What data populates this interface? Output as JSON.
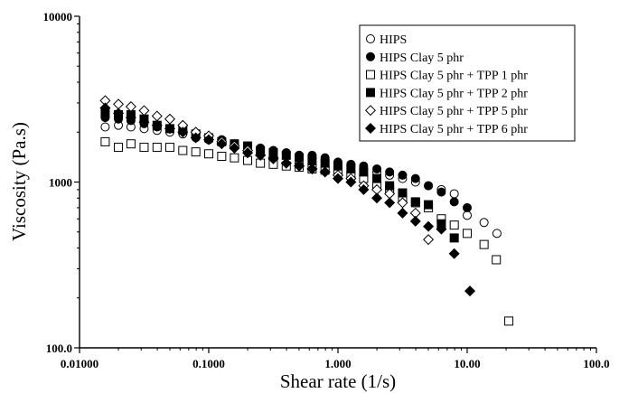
{
  "chart_data": {
    "type": "scatter",
    "xlabel": "Shear rate (1/s)",
    "ylabel": "Viscosity (Pa.s)",
    "xscale": "log",
    "yscale": "log",
    "xlim": [
      0.01,
      100
    ],
    "ylim": [
      100,
      10000
    ],
    "x_ticks": [
      {
        "value": 0.01,
        "label": "0.01000"
      },
      {
        "value": 0.1,
        "label": "0.1000"
      },
      {
        "value": 1,
        "label": "1.000"
      },
      {
        "value": 10,
        "label": "10.00"
      },
      {
        "value": 100,
        "label": "100.0"
      }
    ],
    "y_ticks": [
      {
        "value": 100,
        "label": "100.0"
      },
      {
        "value": 1000,
        "label": "1000"
      },
      {
        "value": 10000,
        "label": "10000"
      }
    ],
    "grid": false,
    "legend_position": "top-right",
    "series": [
      {
        "name": "HIPS",
        "marker": "open-circle",
        "points": [
          [
            0.0158,
            2150
          ],
          [
            0.02,
            2200
          ],
          [
            0.025,
            2150
          ],
          [
            0.0316,
            2100
          ],
          [
            0.0398,
            2050
          ],
          [
            0.05,
            2000
          ],
          [
            0.063,
            1950
          ],
          [
            0.0794,
            1850
          ],
          [
            0.1,
            1800
          ],
          [
            0.126,
            1750
          ],
          [
            0.158,
            1700
          ],
          [
            0.2,
            1650
          ],
          [
            0.251,
            1600
          ],
          [
            0.316,
            1550
          ],
          [
            0.398,
            1500
          ],
          [
            0.501,
            1450
          ],
          [
            0.631,
            1400
          ],
          [
            0.794,
            1350
          ],
          [
            1.0,
            1300
          ],
          [
            1.26,
            1250
          ],
          [
            1.58,
            1200
          ],
          [
            2.0,
            1150
          ],
          [
            2.51,
            1100
          ],
          [
            3.16,
            1050
          ],
          [
            3.98,
            1000
          ],
          [
            5.01,
            950
          ],
          [
            6.31,
            900
          ],
          [
            7.94,
            850
          ],
          [
            10.0,
            630
          ],
          [
            13.5,
            570
          ],
          [
            17.0,
            490
          ]
        ]
      },
      {
        "name": "HIPS Clay 5 phr",
        "marker": "filled-circle",
        "points": [
          [
            0.0158,
            2450
          ],
          [
            0.02,
            2400
          ],
          [
            0.025,
            2350
          ],
          [
            0.0316,
            2250
          ],
          [
            0.0398,
            2150
          ],
          [
            0.05,
            2100
          ],
          [
            0.063,
            2050
          ],
          [
            0.0794,
            1950
          ],
          [
            0.1,
            1850
          ],
          [
            0.126,
            1800
          ],
          [
            0.158,
            1700
          ],
          [
            0.2,
            1650
          ],
          [
            0.251,
            1600
          ],
          [
            0.316,
            1550
          ],
          [
            0.398,
            1500
          ],
          [
            0.501,
            1450
          ],
          [
            0.631,
            1450
          ],
          [
            0.794,
            1400
          ],
          [
            1.0,
            1320
          ],
          [
            1.26,
            1280
          ],
          [
            1.58,
            1250
          ],
          [
            2.0,
            1200
          ],
          [
            2.51,
            1150
          ],
          [
            3.16,
            1100
          ],
          [
            3.98,
            1050
          ],
          [
            5.01,
            950
          ],
          [
            6.31,
            870
          ],
          [
            7.94,
            760
          ],
          [
            10.0,
            700
          ]
        ]
      },
      {
        "name": "HIPS Clay 5 phr + TPP 1 phr",
        "marker": "open-square",
        "points": [
          [
            0.0158,
            1750
          ],
          [
            0.02,
            1620
          ],
          [
            0.025,
            1700
          ],
          [
            0.0316,
            1620
          ],
          [
            0.0398,
            1620
          ],
          [
            0.05,
            1620
          ],
          [
            0.063,
            1550
          ],
          [
            0.0794,
            1520
          ],
          [
            0.1,
            1480
          ],
          [
            0.126,
            1430
          ],
          [
            0.158,
            1400
          ],
          [
            0.2,
            1350
          ],
          [
            0.251,
            1300
          ],
          [
            0.316,
            1280
          ],
          [
            0.398,
            1250
          ],
          [
            0.501,
            1230
          ],
          [
            0.631,
            1200
          ],
          [
            0.794,
            1180
          ],
          [
            1.0,
            1150
          ],
          [
            1.26,
            1100
          ],
          [
            1.58,
            1050
          ],
          [
            2.0,
            950
          ],
          [
            2.51,
            900
          ],
          [
            3.16,
            800
          ],
          [
            3.98,
            750
          ],
          [
            5.01,
            700
          ],
          [
            6.31,
            600
          ],
          [
            7.94,
            550
          ],
          [
            10.0,
            490
          ],
          [
            13.5,
            420
          ],
          [
            16.8,
            340
          ],
          [
            21.0,
            145
          ]
        ]
      },
      {
        "name": "HIPS Clay 5 phr + TPP 2 phr",
        "marker": "filled-square",
        "points": [
          [
            0.0158,
            2600
          ],
          [
            0.02,
            2550
          ],
          [
            0.025,
            2550
          ],
          [
            0.0316,
            2400
          ],
          [
            0.0398,
            2200
          ],
          [
            0.05,
            2100
          ],
          [
            0.063,
            2050
          ],
          [
            0.0794,
            1950
          ],
          [
            0.1,
            1850
          ],
          [
            0.126,
            1750
          ],
          [
            0.158,
            1700
          ],
          [
            0.2,
            1650
          ],
          [
            0.251,
            1550
          ],
          [
            0.316,
            1500
          ],
          [
            0.398,
            1450
          ],
          [
            0.501,
            1400
          ],
          [
            0.631,
            1350
          ],
          [
            0.794,
            1300
          ],
          [
            1.0,
            1250
          ],
          [
            1.26,
            1200
          ],
          [
            1.58,
            1150
          ],
          [
            2.0,
            1050
          ],
          [
            2.51,
            950
          ],
          [
            3.16,
            860
          ],
          [
            3.98,
            760
          ],
          [
            5.01,
            730
          ],
          [
            6.31,
            560
          ],
          [
            7.94,
            460
          ]
        ]
      },
      {
        "name": "HIPS Clay 5 phr + TPP 5 phr",
        "marker": "open-diamond",
        "points": [
          [
            0.0158,
            3100
          ],
          [
            0.02,
            2950
          ],
          [
            0.025,
            2850
          ],
          [
            0.0316,
            2700
          ],
          [
            0.0398,
            2500
          ],
          [
            0.05,
            2400
          ],
          [
            0.063,
            2200
          ],
          [
            0.0794,
            2000
          ],
          [
            0.1,
            1900
          ],
          [
            0.126,
            1750
          ],
          [
            0.158,
            1650
          ],
          [
            0.2,
            1550
          ],
          [
            0.251,
            1450
          ],
          [
            0.316,
            1400
          ],
          [
            0.398,
            1300
          ],
          [
            0.501,
            1250
          ],
          [
            0.631,
            1200
          ],
          [
            0.794,
            1150
          ],
          [
            1.0,
            1100
          ],
          [
            1.26,
            1050
          ],
          [
            1.58,
            950
          ],
          [
            2.0,
            900
          ],
          [
            2.51,
            850
          ],
          [
            3.16,
            750
          ],
          [
            3.98,
            650
          ],
          [
            5.01,
            450
          ]
        ]
      },
      {
        "name": "HIPS Clay 5 phr + TPP 6 phr",
        "marker": "filled-diamond",
        "points": [
          [
            0.0158,
            2800
          ],
          [
            0.02,
            2600
          ],
          [
            0.025,
            2450
          ],
          [
            0.0316,
            2300
          ],
          [
            0.0398,
            2200
          ],
          [
            0.05,
            2100
          ],
          [
            0.063,
            2000
          ],
          [
            0.0794,
            1850
          ],
          [
            0.1,
            1800
          ],
          [
            0.126,
            1700
          ],
          [
            0.158,
            1600
          ],
          [
            0.2,
            1500
          ],
          [
            0.251,
            1450
          ],
          [
            0.316,
            1380
          ],
          [
            0.398,
            1300
          ],
          [
            0.501,
            1250
          ],
          [
            0.631,
            1200
          ],
          [
            0.794,
            1150
          ],
          [
            1.0,
            1050
          ],
          [
            1.26,
            1000
          ],
          [
            1.58,
            900
          ],
          [
            2.0,
            800
          ],
          [
            2.51,
            750
          ],
          [
            3.16,
            650
          ],
          [
            3.98,
            580
          ],
          [
            5.01,
            540
          ],
          [
            6.31,
            520
          ],
          [
            7.94,
            370
          ],
          [
            10.5,
            220
          ]
        ]
      }
    ]
  }
}
